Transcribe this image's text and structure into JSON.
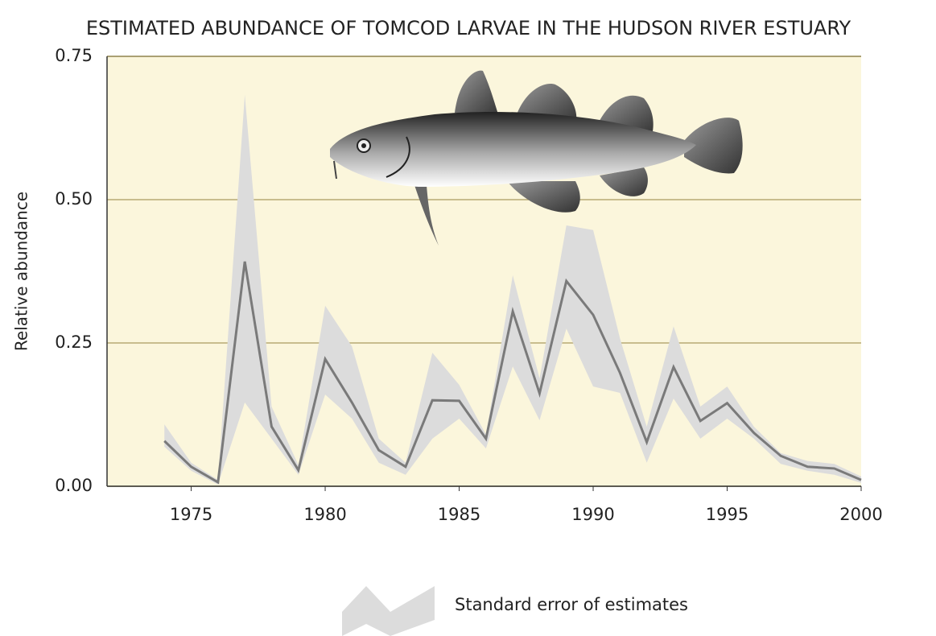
{
  "chart_data": {
    "type": "line",
    "title": "ESTIMATED ABUNDANCE OF TOMCOD LARVAE IN THE HUDSON RIVER ESTUARY",
    "y_label": "Relative abundance",
    "x": [
      1974,
      1975,
      1976,
      1977,
      1978,
      1979,
      1980,
      1981,
      1982,
      1983,
      1984,
      1985,
      1986,
      1987,
      1988,
      1989,
      1990,
      1991,
      1992,
      1993,
      1994,
      1995,
      1996,
      1997,
      1998,
      1999,
      2000
    ],
    "values": [
      0.079,
      0.034,
      0.007,
      0.392,
      0.104,
      0.028,
      0.222,
      0.146,
      0.063,
      0.034,
      0.15,
      0.149,
      0.083,
      0.305,
      0.162,
      0.358,
      0.299,
      0.198,
      0.077,
      0.208,
      0.114,
      0.145,
      0.093,
      0.053,
      0.034,
      0.031,
      0.011
    ],
    "color": "#7a7a7a",
    "error_band": {
      "name": "Standard error of estimates",
      "color": "#dcdcdc",
      "upper": [
        0.108,
        0.041,
        0.011,
        0.683,
        0.139,
        0.037,
        0.315,
        0.244,
        0.083,
        0.041,
        0.233,
        0.177,
        0.09,
        0.368,
        0.188,
        0.455,
        0.447,
        0.258,
        0.104,
        0.279,
        0.139,
        0.174,
        0.104,
        0.058,
        0.044,
        0.039,
        0.017
      ],
      "lower": [
        0.069,
        0.027,
        0.003,
        0.146,
        0.083,
        0.02,
        0.16,
        0.118,
        0.041,
        0.02,
        0.083,
        0.118,
        0.066,
        0.209,
        0.115,
        0.275,
        0.174,
        0.163,
        0.041,
        0.153,
        0.083,
        0.118,
        0.083,
        0.039,
        0.027,
        0.02,
        0.006
      ]
    },
    "xlim": [
      1971.86,
      2000
    ],
    "xticks": [
      1975,
      1980,
      1985,
      1990,
      1995,
      2000
    ],
    "ylim": [
      0,
      0.75
    ],
    "yticks": [
      {
        "value": 0,
        "label": "0.00"
      },
      0.25,
      {
        "value": 0.5,
        "label": "0.50"
      },
      0.75
    ],
    "grid": true
  }
}
